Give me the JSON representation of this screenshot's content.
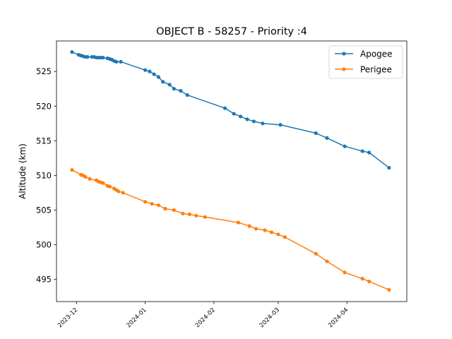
{
  "chart_data": {
    "type": "line",
    "title": "OBJECT B - 58257 - Priority :4",
    "xlabel": "",
    "ylabel": "Altitude (km)",
    "xlim": [
      "2023-11-22",
      "2024-04-28"
    ],
    "ylim": [
      491.8,
      529.4
    ],
    "x_ticks": [
      "2023-12",
      "2024-01",
      "2024-02",
      "2024-03",
      "2024-04"
    ],
    "y_ticks": [
      495,
      500,
      505,
      510,
      515,
      520,
      525
    ],
    "grid": false,
    "legend": "top-right",
    "series": [
      {
        "name": "Apogee",
        "color": "#1f77b4",
        "points": [
          [
            "2023-11-29",
            527.8
          ],
          [
            "2023-12-02",
            527.4
          ],
          [
            "2023-12-03",
            527.3
          ],
          [
            "2023-12-04",
            527.2
          ],
          [
            "2023-12-05",
            527.1
          ],
          [
            "2023-12-06",
            527.1
          ],
          [
            "2023-12-08",
            527.1
          ],
          [
            "2023-12-09",
            527.1
          ],
          [
            "2023-12-10",
            527.0
          ],
          [
            "2023-12-11",
            527.0
          ],
          [
            "2023-12-12",
            527.0
          ],
          [
            "2023-12-13",
            527.0
          ],
          [
            "2023-12-15",
            526.9
          ],
          [
            "2023-12-16",
            526.8
          ],
          [
            "2023-12-17",
            526.7
          ],
          [
            "2023-12-18",
            526.5
          ],
          [
            "2023-12-19",
            526.4
          ],
          [
            "2023-12-21",
            526.4
          ],
          [
            "2024-01-01",
            525.2
          ],
          [
            "2024-01-03",
            525.0
          ],
          [
            "2024-01-05",
            524.6
          ],
          [
            "2024-01-07",
            524.2
          ],
          [
            "2024-01-09",
            523.5
          ],
          [
            "2024-01-12",
            523.1
          ],
          [
            "2024-01-14",
            522.5
          ],
          [
            "2024-01-17",
            522.2
          ],
          [
            "2024-01-20",
            521.6
          ],
          [
            "2024-02-06",
            519.7
          ],
          [
            "2024-02-10",
            518.9
          ],
          [
            "2024-02-13",
            518.5
          ],
          [
            "2024-02-16",
            518.1
          ],
          [
            "2024-02-19",
            517.8
          ],
          [
            "2024-02-23",
            517.5
          ],
          [
            "2024-03-02",
            517.3
          ],
          [
            "2024-03-18",
            516.1
          ],
          [
            "2024-03-23",
            515.4
          ],
          [
            "2024-03-31",
            514.2
          ],
          [
            "2024-04-08",
            513.5
          ],
          [
            "2024-04-11",
            513.3
          ],
          [
            "2024-04-20",
            511.1
          ]
        ]
      },
      {
        "name": "Perigee",
        "color": "#ff7f0e",
        "points": [
          [
            "2023-11-29",
            510.8
          ],
          [
            "2023-12-03",
            510.1
          ],
          [
            "2023-12-04",
            510.0
          ],
          [
            "2023-12-05",
            509.8
          ],
          [
            "2023-12-07",
            509.5
          ],
          [
            "2023-12-10",
            509.3
          ],
          [
            "2023-12-11",
            509.1
          ],
          [
            "2023-12-12",
            509.0
          ],
          [
            "2023-12-13",
            508.9
          ],
          [
            "2023-12-15",
            508.5
          ],
          [
            "2023-12-16",
            508.4
          ],
          [
            "2023-12-18",
            508.1
          ],
          [
            "2023-12-19",
            507.9
          ],
          [
            "2023-12-20",
            507.7
          ],
          [
            "2023-12-22",
            507.5
          ],
          [
            "2024-01-01",
            506.2
          ],
          [
            "2024-01-04",
            505.9
          ],
          [
            "2024-01-07",
            505.7
          ],
          [
            "2024-01-10",
            505.2
          ],
          [
            "2024-01-14",
            505.0
          ],
          [
            "2024-01-18",
            504.5
          ],
          [
            "2024-01-21",
            504.4
          ],
          [
            "2024-01-24",
            504.2
          ],
          [
            "2024-01-28",
            504.0
          ],
          [
            "2024-02-12",
            503.2
          ],
          [
            "2024-02-17",
            502.7
          ],
          [
            "2024-02-20",
            502.3
          ],
          [
            "2024-02-24",
            502.1
          ],
          [
            "2024-02-27",
            501.8
          ],
          [
            "2024-03-01",
            501.5
          ],
          [
            "2024-03-04",
            501.1
          ],
          [
            "2024-03-18",
            498.7
          ],
          [
            "2024-03-23",
            497.6
          ],
          [
            "2024-03-31",
            496.0
          ],
          [
            "2024-04-08",
            495.1
          ],
          [
            "2024-04-11",
            494.7
          ],
          [
            "2024-04-20",
            493.5
          ]
        ]
      }
    ]
  }
}
